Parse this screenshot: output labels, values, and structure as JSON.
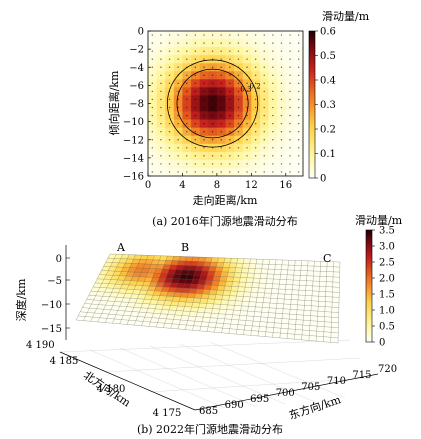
{
  "chart_data": [
    {
      "type": "heatmap",
      "panel_caption": "(a) 2016年门源地震滑动分布",
      "xlabel": "走向距离/km",
      "ylabel": "倾向距离/km",
      "xlim": [
        0,
        18
      ],
      "ylim": [
        -16,
        0
      ],
      "x_ticks": [
        "0",
        "4",
        "8",
        "12",
        "16"
      ],
      "y_ticks": [
        "0",
        "−2",
        "−4",
        "−6",
        "−8",
        "−10",
        "−12",
        "−14",
        "−16"
      ],
      "colorbar": {
        "title": "滑动量/m",
        "ticks": [
          "0.6",
          "0.5",
          "0.4",
          "0.3",
          "0.2",
          "0.1",
          "0"
        ],
        "min": 0,
        "max": 0.6
      },
      "slip_peak": {
        "value": 0.58,
        "x_km": 7.5,
        "depth_km": -8.0
      },
      "contours": [
        {
          "label": "0.3",
          "value": 0.3
        },
        {
          "label": "0.2",
          "value": 0.2
        }
      ]
    },
    {
      "type": "heatmap",
      "panel_caption": "(b) 2022年门源地震滑动分布",
      "zlabel": "深度/km",
      "ylabel": "北方向/km",
      "xlabel": "东方向/km",
      "z_ticks": [
        "0",
        "−5",
        "−10",
        "−15"
      ],
      "y_ticks": [
        "4 190",
        "4 185",
        "4 180",
        "4 175"
      ],
      "x_ticks": [
        "685",
        "690",
        "695",
        "700",
        "705",
        "710",
        "715",
        "720"
      ],
      "segment_labels": [
        "A",
        "B",
        "C"
      ],
      "colorbar": {
        "title": "滑动量/m",
        "ticks": [
          "3.5",
          "3.0",
          "2.5",
          "2.0",
          "1.5",
          "1.0",
          "0.5",
          "0"
        ],
        "min": 0,
        "max": 3.5
      },
      "slip_peak": {
        "value": 3.4
      }
    }
  ]
}
